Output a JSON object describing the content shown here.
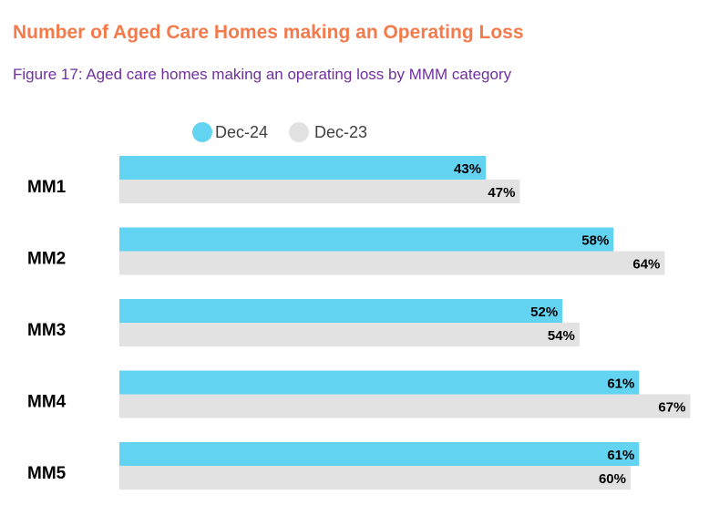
{
  "title": "Number of Aged Care Homes making an Operating Loss",
  "subtitle": "Figure 17: Aged care homes making an operating loss by MMM category",
  "chart_data": {
    "type": "bar",
    "orientation": "horizontal",
    "categories": [
      "MM1",
      "MM2",
      "MM3",
      "MM4",
      "MM5"
    ],
    "series": [
      {
        "name": "Dec-24",
        "values": [
          43,
          58,
          52,
          61,
          61
        ],
        "labels": [
          "43%",
          "58%",
          "52%",
          "61%",
          "61%"
        ],
        "color": "#63d3f2"
      },
      {
        "name": "Dec-23",
        "values": [
          47,
          64,
          54,
          67,
          60
        ],
        "labels": [
          "47%",
          "64%",
          "54%",
          "67%",
          "60%"
        ],
        "color": "#e2e2e2"
      }
    ],
    "unit": "%",
    "legend_position": "top",
    "grid": false
  }
}
